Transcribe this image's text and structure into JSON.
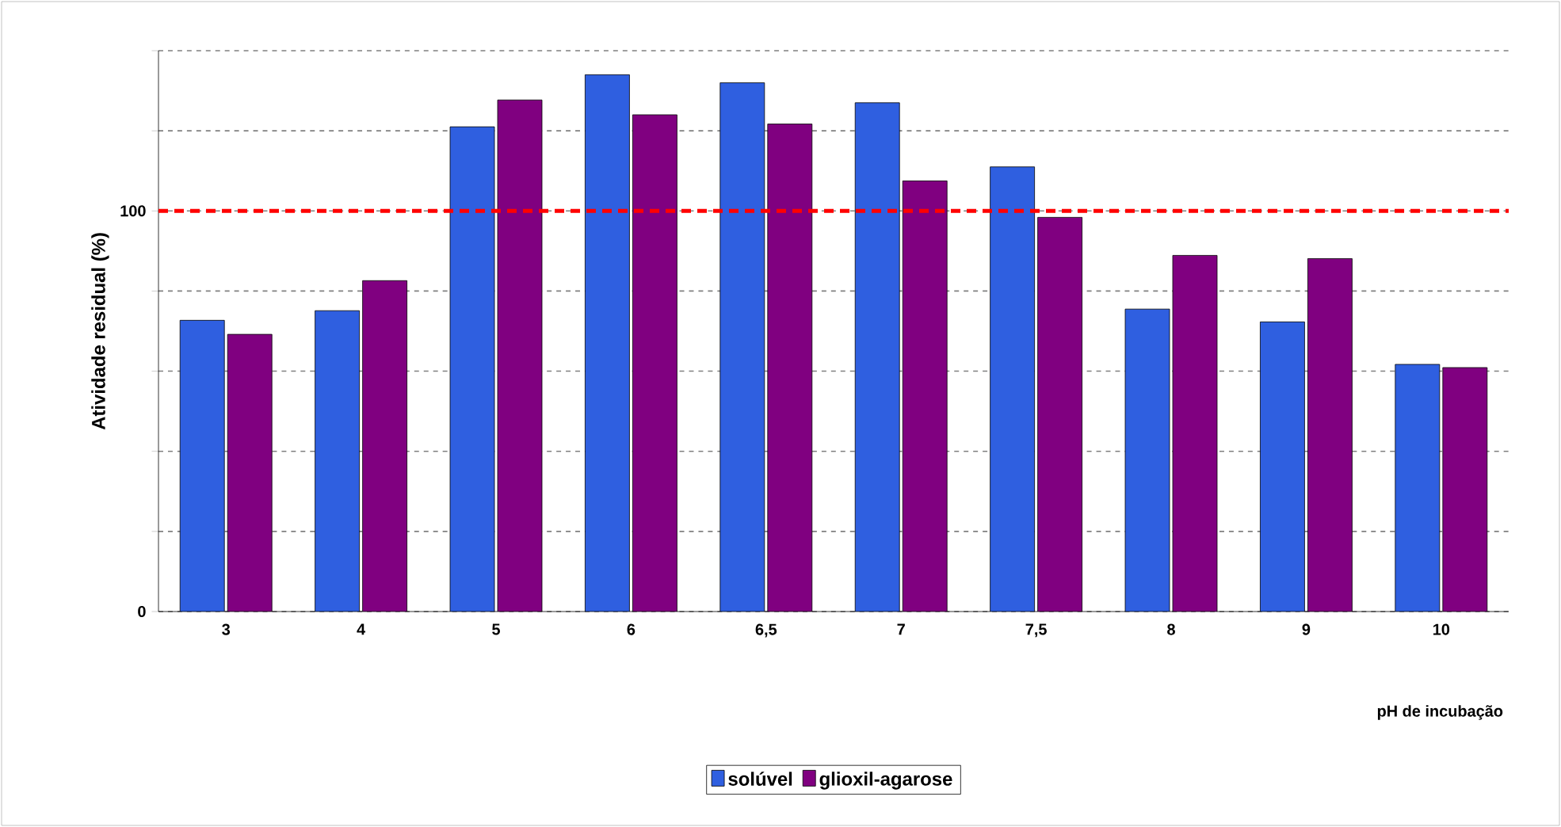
{
  "chart_data": {
    "type": "bar",
    "xlabel": "pH de incubação",
    "ylabel": "Atividade residual (%)",
    "categories": [
      "3",
      "4",
      "5",
      "6",
      "6,5",
      "7",
      "7,5",
      "8",
      "9",
      "10"
    ],
    "series": [
      {
        "name": "solúvel",
        "color": "#2f5fe0",
        "values": [
          72.7,
          75.1,
          121,
          134,
          132,
          127,
          111,
          75.5,
          72.3,
          61.7
        ]
      },
      {
        "name": "glioxil-agarose",
        "color": "#800080",
        "values": [
          69.2,
          82.6,
          127.7,
          124,
          121.7,
          107.5,
          98.4,
          88.9,
          88.1,
          60.9
        ]
      }
    ],
    "ylim": [
      0,
      140
    ],
    "yticks": [
      0,
      {
        "value": 20,
        "label": null
      },
      {
        "value": 40,
        "label": null
      },
      {
        "value": 60,
        "label": null
      },
      {
        "value": 80,
        "label": null
      },
      100,
      {
        "value": 120,
        "label": null
      },
      {
        "value": 140,
        "label": null
      }
    ],
    "grid": "y",
    "legend": "bottom",
    "ref_lines": [
      {
        "axis": "y",
        "value": 100,
        "color": "#ff0000",
        "line_style": "dashed"
      }
    ]
  }
}
